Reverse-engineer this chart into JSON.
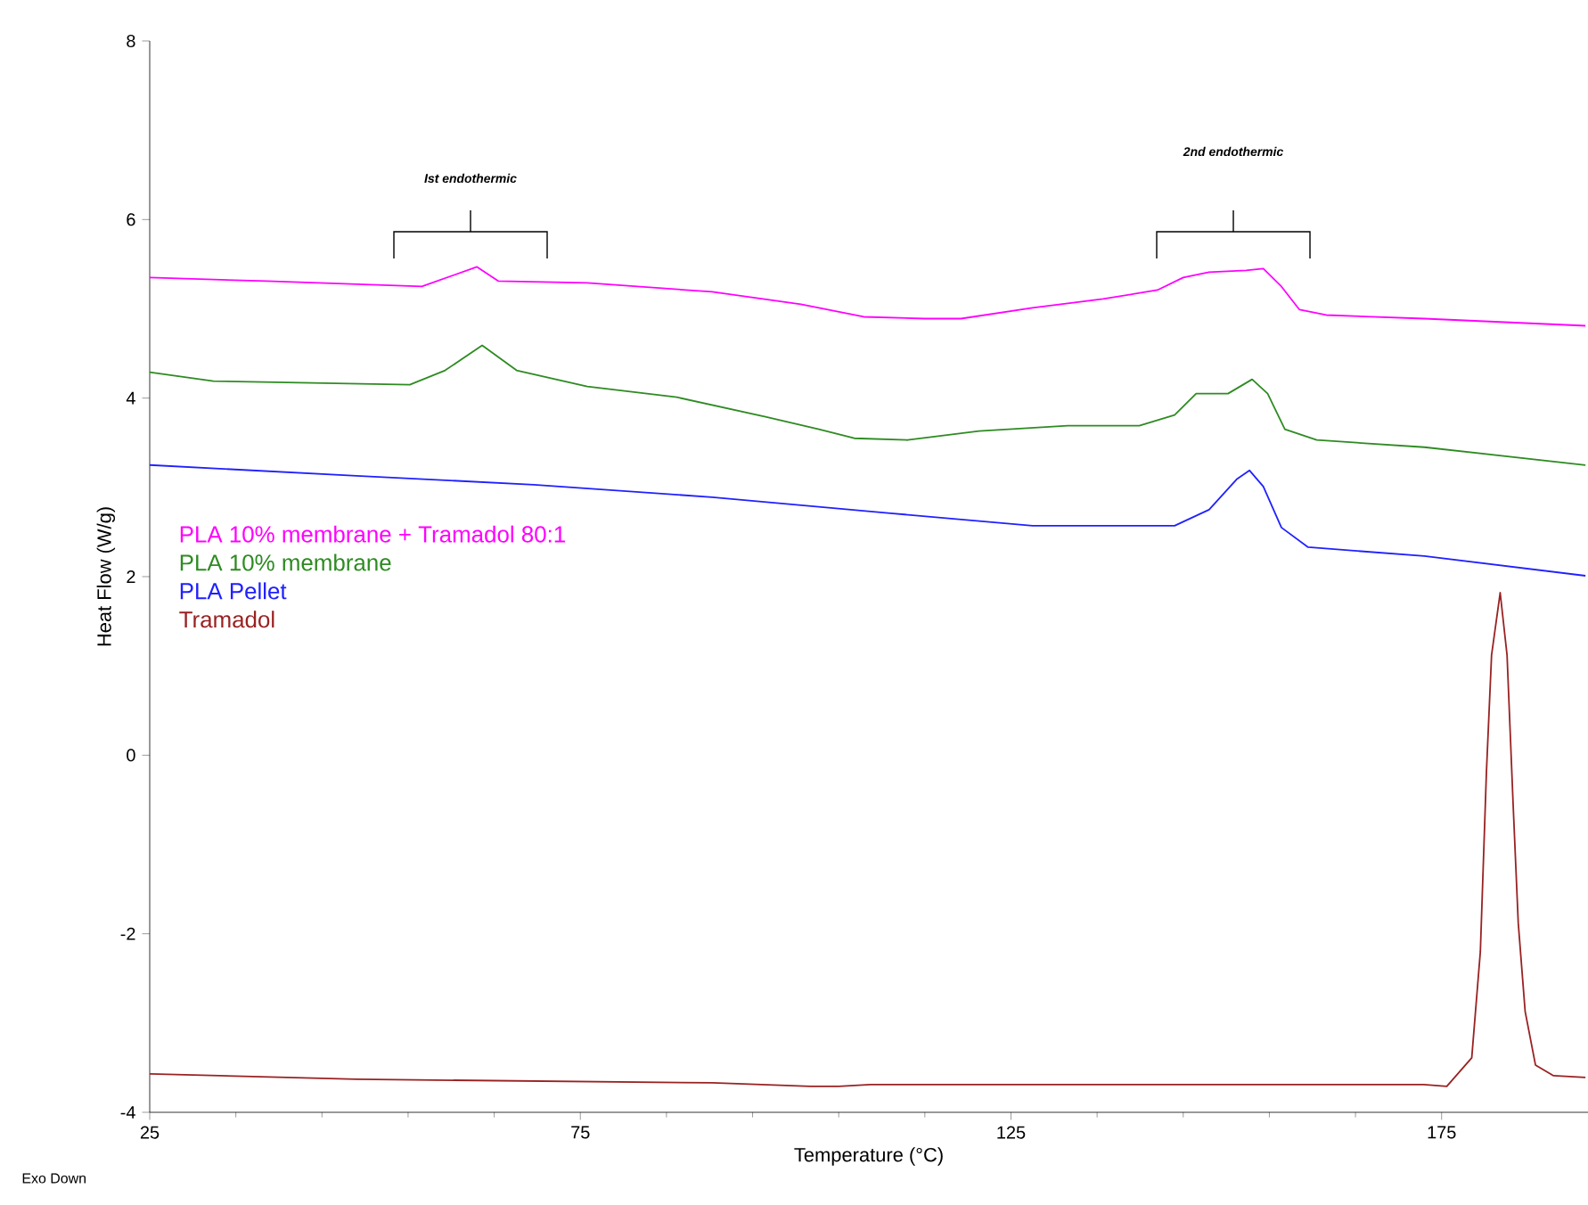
{
  "chart_data": {
    "type": "line",
    "xlabel": "Temperature (°C)",
    "ylabel": "Heat Flow (W/g)",
    "xlim": [
      25,
      192
    ],
    "xticks": [
      25,
      75,
      125,
      175
    ],
    "ylim": [
      -4,
      8
    ],
    "yticks": [
      -4,
      -2,
      0,
      2,
      4,
      6,
      8
    ],
    "grid": false,
    "legend": "left",
    "line_style": "solid",
    "annotations": [
      "Ist endothermic",
      "2nd endothermic",
      "Exo Down"
    ],
    "series": [
      {
        "name": "PLA 10% membrane + Tramadol 80:1",
        "color": "#ff00ff",
        "x": [
          25,
          38.6,
          56.6,
          63,
          65.5,
          75.8,
          90.3,
          100.6,
          107.9,
          115,
          119.2,
          127.5,
          135.7,
          142,
          145,
          148,
          152.3,
          154.3,
          156.4,
          158.5,
          161.6,
          173,
          191.7
        ],
        "values": [
          5.35,
          5.31,
          5.25,
          5.47,
          5.31,
          5.29,
          5.19,
          5.05,
          4.91,
          4.89,
          4.89,
          5.01,
          5.11,
          5.21,
          5.35,
          5.41,
          5.43,
          5.45,
          5.25,
          4.99,
          4.93,
          4.89,
          4.81
        ]
      },
      {
        "name": "PLA 10% membrane",
        "color": "#2e8b22",
        "x": [
          25,
          32.4,
          55.2,
          59.3,
          63.6,
          67.6,
          75.8,
          86.2,
          96.5,
          102.7,
          106.8,
          113,
          121.3,
          131.6,
          139.9,
          144,
          146.5,
          150.2,
          153,
          154.8,
          156.8,
          160.5,
          173,
          191.7
        ],
        "values": [
          4.29,
          4.19,
          4.15,
          4.31,
          4.59,
          4.31,
          4.13,
          4.01,
          3.79,
          3.65,
          3.55,
          3.53,
          3.63,
          3.69,
          3.69,
          3.81,
          4.05,
          4.05,
          4.21,
          4.05,
          3.65,
          3.53,
          3.45,
          3.25
        ]
      },
      {
        "name": "PLA Pellet",
        "color": "#2020ff",
        "x": [
          25,
          49,
          69.6,
          90.3,
          111,
          127.5,
          144,
          148,
          151.2,
          152.7,
          154.3,
          156.4,
          159.5,
          173,
          191.7
        ],
        "values": [
          3.25,
          3.13,
          3.03,
          2.89,
          2.71,
          2.57,
          2.57,
          2.75,
          3.09,
          3.19,
          3.01,
          2.55,
          2.33,
          2.23,
          2.01
        ]
      },
      {
        "name": "Tramadol",
        "color": "#992222",
        "x": [
          25,
          49,
          90.3,
          101.7,
          105,
          108.7,
          125,
          150,
          172.9,
          175.6,
          178.5,
          179.5,
          180.2,
          180.8,
          181.8,
          182.6,
          183.3,
          183.9,
          184.7,
          185.9,
          188,
          191.7
        ],
        "values": [
          -3.57,
          -3.63,
          -3.67,
          -3.71,
          -3.71,
          -3.69,
          -3.69,
          -3.69,
          -3.69,
          -3.71,
          -3.39,
          -2.2,
          -0.2,
          1.12,
          1.82,
          1.12,
          -0.54,
          -1.88,
          -2.87,
          -3.47,
          -3.59,
          -3.61
        ]
      }
    ]
  }
}
